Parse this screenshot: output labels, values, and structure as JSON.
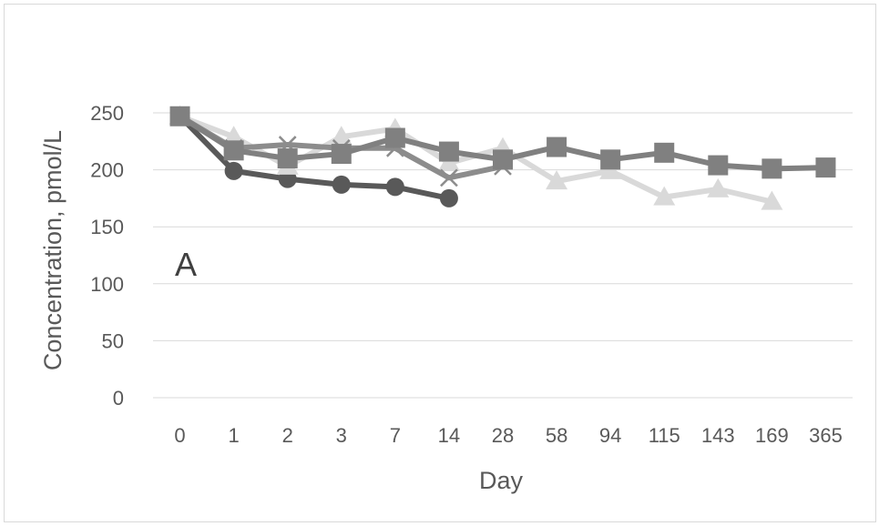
{
  "chart_data": {
    "type": "line",
    "title": "",
    "panel_label": "A",
    "xlabel": "Day",
    "ylabel": "Concentration, pmol/L",
    "ylim": [
      0,
      250
    ],
    "yticks": [
      0,
      50,
      100,
      150,
      200,
      250
    ],
    "categories": [
      "0",
      "1",
      "2",
      "3",
      "7",
      "14",
      "28",
      "58",
      "94",
      "115",
      "143",
      "169",
      "365"
    ],
    "grid": true,
    "legend": "none",
    "series": [
      {
        "marker": "circle",
        "color": "#595959",
        "values": [
          247,
          199,
          192,
          187,
          185,
          175,
          null,
          null,
          null,
          null,
          null,
          null,
          null
        ]
      },
      {
        "marker": "triangle",
        "color": "#d9d9d9",
        "values": [
          247,
          229,
          203,
          229,
          236,
          206,
          219,
          190,
          199,
          176,
          183,
          172,
          null
        ]
      },
      {
        "marker": "cross",
        "color": "#8c8c8c",
        "values": [
          247,
          219,
          222,
          219,
          219,
          193,
          203,
          null,
          null,
          null,
          null,
          null,
          null
        ]
      },
      {
        "marker": "square",
        "color": "#808080",
        "values": [
          247,
          217,
          210,
          214,
          228,
          216,
          209,
          220,
          209,
          215,
          204,
          201,
          202
        ]
      }
    ]
  }
}
